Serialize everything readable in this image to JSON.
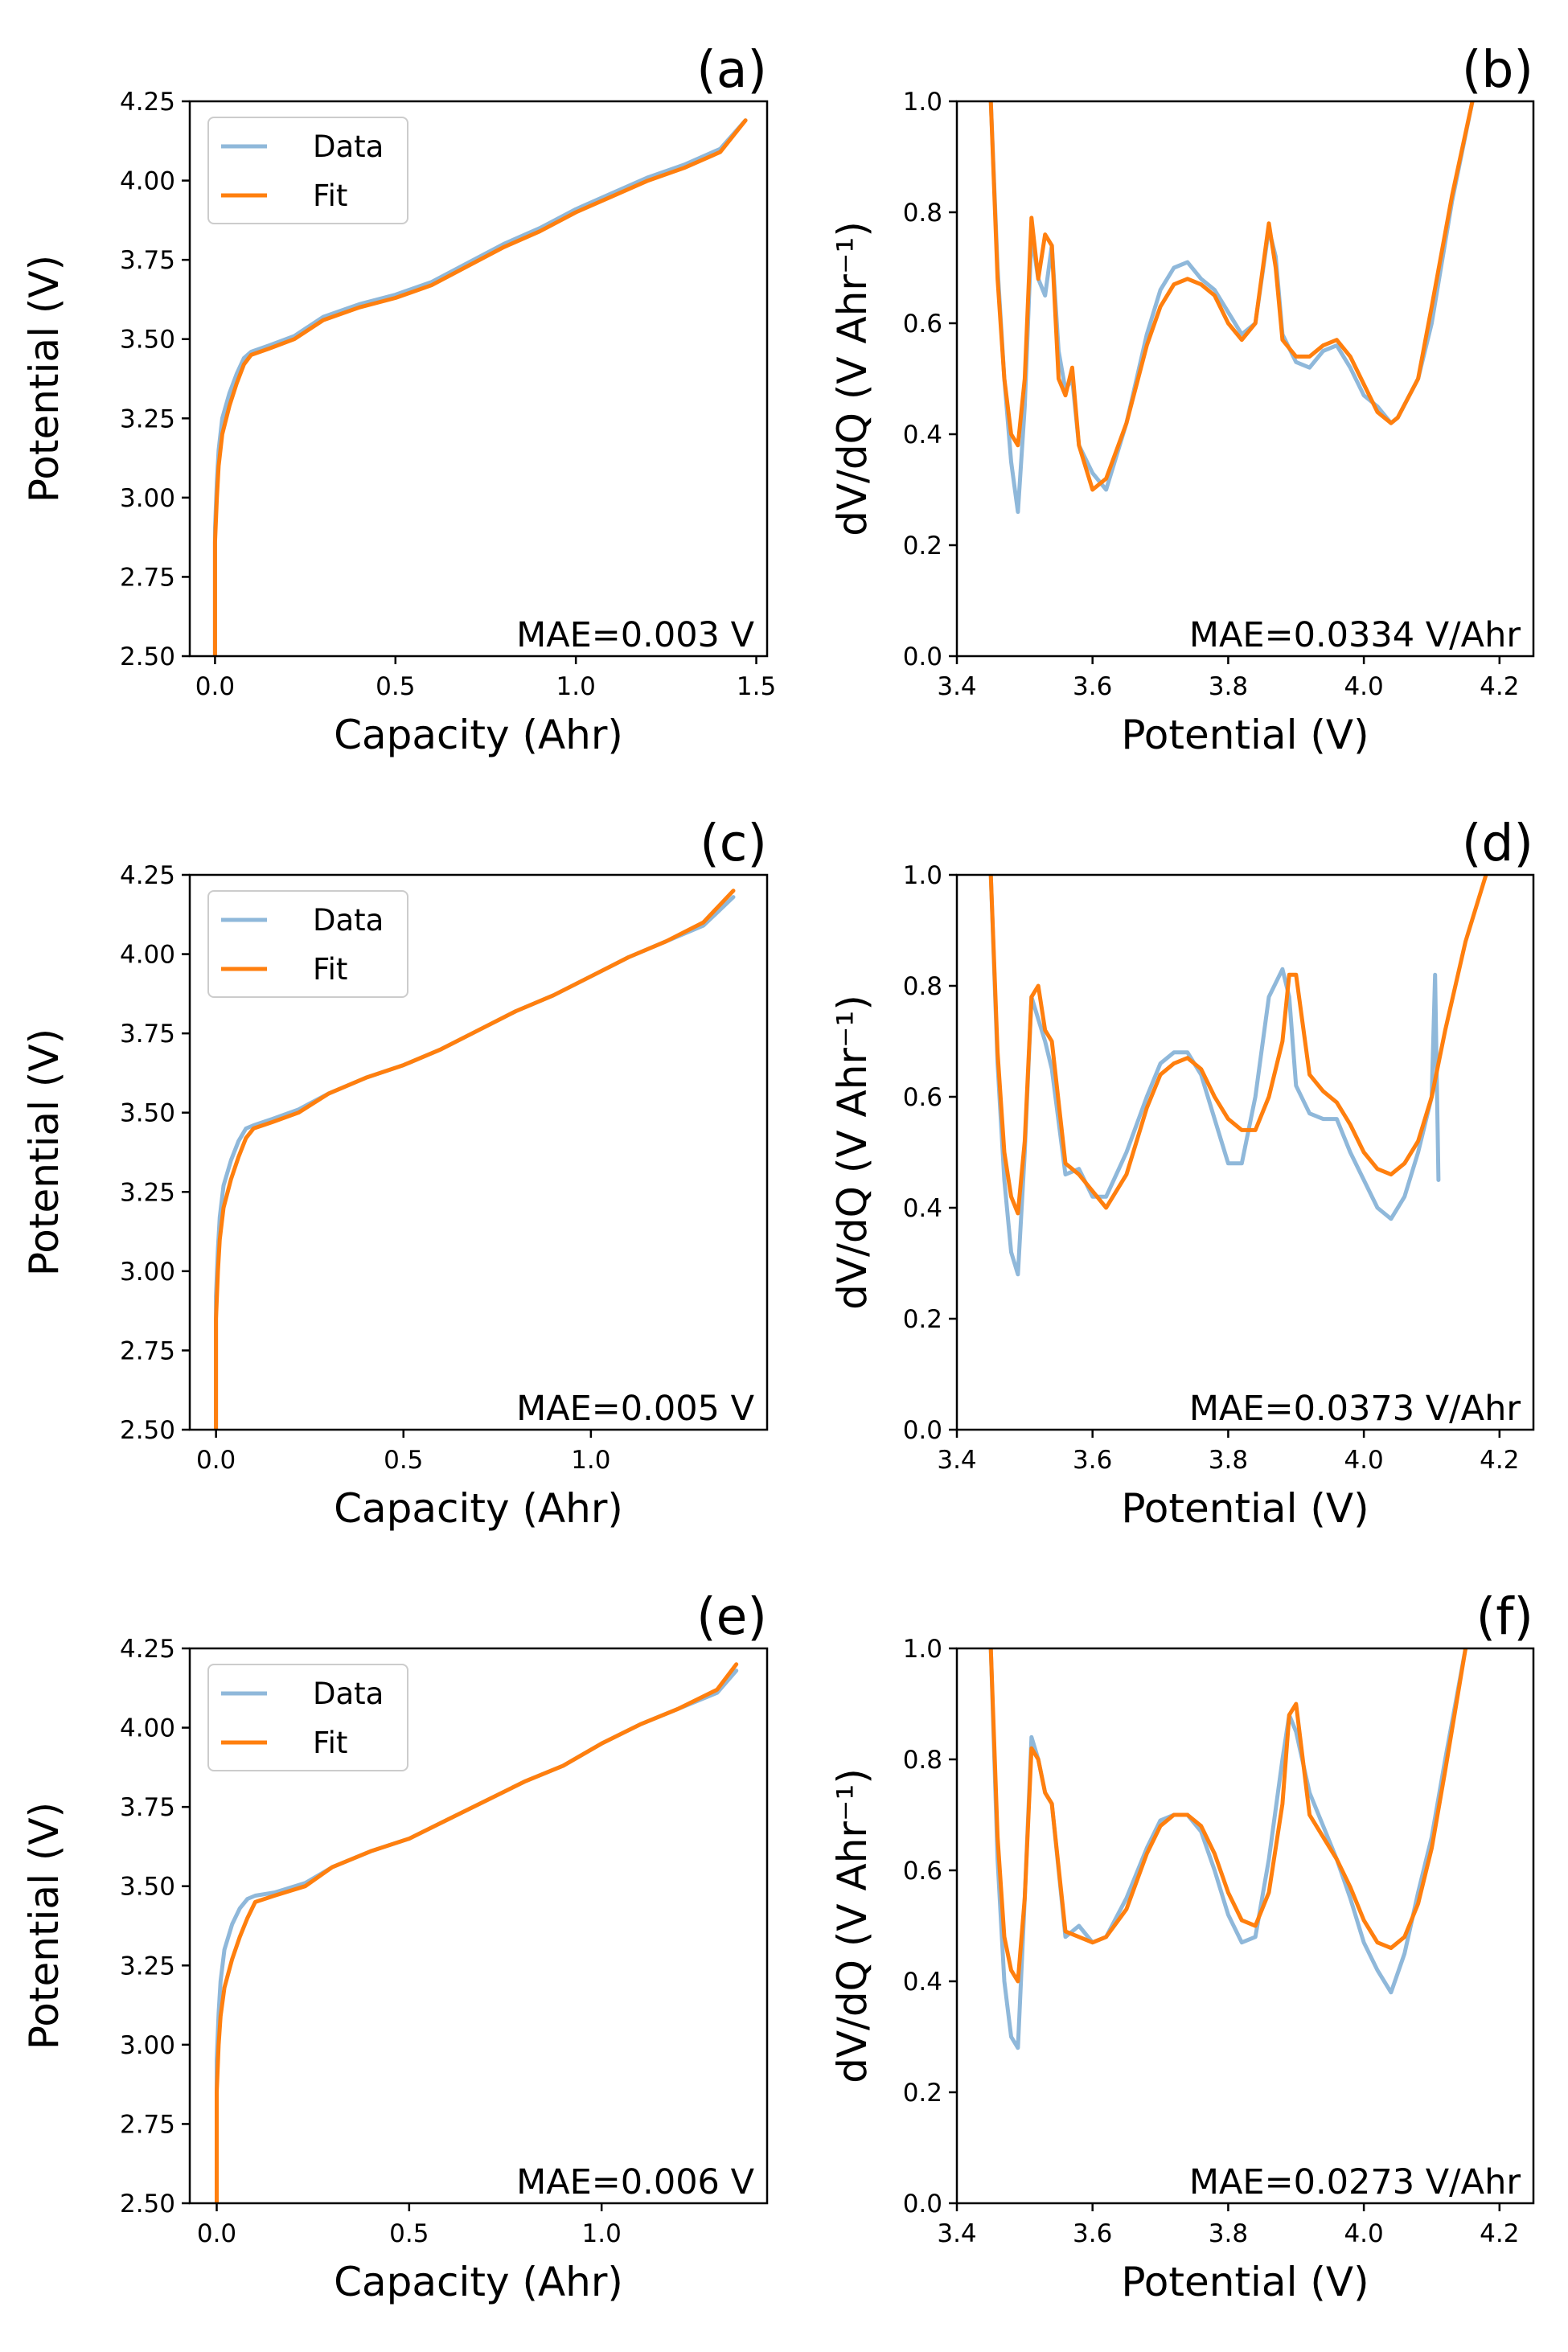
{
  "figure": {
    "colors": {
      "data": "#8fb8da",
      "fit": "#ff7f0e",
      "frame": "#000000",
      "legend_edge": "#cccccc"
    }
  },
  "chart_data": [
    {
      "id": "a",
      "type": "line",
      "panel_label": "(a)",
      "xlabel": "Capacity (Ahr)",
      "ylabel": "Potential (V)",
      "xlim": [
        -0.07,
        1.53
      ],
      "ylim": [
        2.5,
        4.25
      ],
      "xticks": [
        0.0,
        0.5,
        1.0,
        1.5
      ],
      "xtick_labels": [
        "0.0",
        "0.5",
        "1.0",
        "1.5"
      ],
      "yticks": [
        2.5,
        2.75,
        3.0,
        3.25,
        3.5,
        3.75,
        4.0,
        4.25
      ],
      "ytick_labels": [
        "2.50",
        "2.75",
        "3.00",
        "3.25",
        "3.50",
        "3.75",
        "4.00",
        "4.25"
      ],
      "legend": {
        "placement": "upper-left",
        "entries": [
          "Data",
          "Fit"
        ]
      },
      "annotation": "MAE=0.003 V",
      "series": [
        {
          "name": "Data",
          "x": [
            0.0,
            0.0,
            0.005,
            0.01,
            0.02,
            0.04,
            0.06,
            0.08,
            0.1,
            0.15,
            0.22,
            0.3,
            0.4,
            0.5,
            0.6,
            0.7,
            0.8,
            0.9,
            1.0,
            1.1,
            1.2,
            1.3,
            1.4,
            1.47
          ],
          "y": [
            2.5,
            2.9,
            3.05,
            3.15,
            3.25,
            3.33,
            3.39,
            3.44,
            3.46,
            3.48,
            3.51,
            3.57,
            3.61,
            3.64,
            3.68,
            3.74,
            3.8,
            3.85,
            3.91,
            3.96,
            4.01,
            4.05,
            4.1,
            4.19
          ]
        },
        {
          "name": "Fit",
          "x": [
            0.0,
            0.0,
            0.005,
            0.01,
            0.02,
            0.04,
            0.06,
            0.08,
            0.1,
            0.15,
            0.22,
            0.3,
            0.4,
            0.5,
            0.6,
            0.7,
            0.8,
            0.9,
            1.0,
            1.1,
            1.2,
            1.3,
            1.4,
            1.47
          ],
          "y": [
            2.5,
            2.86,
            3.0,
            3.1,
            3.2,
            3.29,
            3.36,
            3.42,
            3.45,
            3.47,
            3.5,
            3.56,
            3.6,
            3.63,
            3.67,
            3.73,
            3.79,
            3.84,
            3.9,
            3.95,
            4.0,
            4.04,
            4.09,
            4.19
          ]
        }
      ]
    },
    {
      "id": "b",
      "type": "line",
      "panel_label": "(b)",
      "xlabel": "Potential (V)",
      "ylabel": "dV/dQ (V Ahr⁻¹)",
      "xlim": [
        3.4,
        4.25
      ],
      "ylim": [
        0.0,
        1.0
      ],
      "xticks": [
        3.4,
        3.6,
        3.8,
        4.0,
        4.2
      ],
      "xtick_labels": [
        "3.4",
        "3.6",
        "3.8",
        "4.0",
        "4.2"
      ],
      "yticks": [
        0.0,
        0.2,
        0.4,
        0.6,
        0.8,
        1.0
      ],
      "ytick_labels": [
        "0.0",
        "0.2",
        "0.4",
        "0.6",
        "0.8",
        "1.0"
      ],
      "annotation": "MAE=0.0334 V/Ahr",
      "series": [
        {
          "name": "Data",
          "x": [
            3.45,
            3.46,
            3.47,
            3.48,
            3.49,
            3.5,
            3.51,
            3.52,
            3.53,
            3.54,
            3.55,
            3.56,
            3.57,
            3.58,
            3.6,
            3.62,
            3.65,
            3.68,
            3.7,
            3.72,
            3.74,
            3.76,
            3.78,
            3.8,
            3.82,
            3.84,
            3.86,
            3.87,
            3.88,
            3.9,
            3.92,
            3.94,
            3.96,
            3.98,
            4.0,
            4.02,
            4.04,
            4.05,
            4.08,
            4.1,
            4.13,
            4.16
          ],
          "y": [
            1.0,
            0.7,
            0.5,
            0.35,
            0.26,
            0.45,
            0.76,
            0.68,
            0.65,
            0.74,
            0.55,
            0.48,
            0.5,
            0.38,
            0.33,
            0.3,
            0.42,
            0.58,
            0.66,
            0.7,
            0.71,
            0.68,
            0.66,
            0.62,
            0.58,
            0.6,
            0.77,
            0.72,
            0.58,
            0.53,
            0.52,
            0.55,
            0.56,
            0.52,
            0.47,
            0.45,
            0.42,
            0.43,
            0.5,
            0.6,
            0.82,
            1.0
          ]
        },
        {
          "name": "Fit",
          "x": [
            3.45,
            3.46,
            3.47,
            3.48,
            3.49,
            3.5,
            3.51,
            3.52,
            3.53,
            3.54,
            3.55,
            3.56,
            3.57,
            3.58,
            3.6,
            3.62,
            3.65,
            3.68,
            3.7,
            3.72,
            3.74,
            3.76,
            3.78,
            3.8,
            3.82,
            3.84,
            3.86,
            3.87,
            3.88,
            3.9,
            3.92,
            3.94,
            3.96,
            3.98,
            4.0,
            4.02,
            4.04,
            4.05,
            4.08,
            4.1,
            4.13,
            4.16
          ],
          "y": [
            1.0,
            0.68,
            0.5,
            0.4,
            0.38,
            0.5,
            0.79,
            0.68,
            0.76,
            0.74,
            0.5,
            0.47,
            0.52,
            0.38,
            0.3,
            0.32,
            0.42,
            0.56,
            0.63,
            0.67,
            0.68,
            0.67,
            0.65,
            0.6,
            0.57,
            0.6,
            0.78,
            0.7,
            0.57,
            0.54,
            0.54,
            0.56,
            0.57,
            0.54,
            0.49,
            0.44,
            0.42,
            0.43,
            0.5,
            0.63,
            0.83,
            1.0
          ]
        }
      ]
    },
    {
      "id": "c",
      "type": "line",
      "panel_label": "(c)",
      "xlabel": "Capacity (Ahr)",
      "ylabel": "Potential (V)",
      "xlim": [
        -0.07,
        1.47
      ],
      "ylim": [
        2.5,
        4.25
      ],
      "xticks": [
        0.0,
        0.5,
        1.0
      ],
      "xtick_labels": [
        "0.0",
        "0.5",
        "1.0"
      ],
      "yticks": [
        2.5,
        2.75,
        3.0,
        3.25,
        3.5,
        3.75,
        4.0,
        4.25
      ],
      "ytick_labels": [
        "2.50",
        "2.75",
        "3.00",
        "3.25",
        "3.50",
        "3.75",
        "4.00",
        "4.25"
      ],
      "legend": {
        "placement": "upper-left",
        "entries": [
          "Data",
          "Fit"
        ]
      },
      "annotation": "MAE=0.005 V",
      "series": [
        {
          "name": "Data",
          "x": [
            0.0,
            0.0,
            0.005,
            0.01,
            0.02,
            0.04,
            0.06,
            0.08,
            0.1,
            0.15,
            0.22,
            0.3,
            0.4,
            0.5,
            0.6,
            0.7,
            0.8,
            0.9,
            1.0,
            1.1,
            1.2,
            1.3,
            1.38
          ],
          "y": [
            2.5,
            2.92,
            3.07,
            3.17,
            3.27,
            3.35,
            3.41,
            3.45,
            3.46,
            3.48,
            3.51,
            3.56,
            3.61,
            3.65,
            3.7,
            3.76,
            3.82,
            3.87,
            3.93,
            3.99,
            4.04,
            4.09,
            4.18
          ]
        },
        {
          "name": "Fit",
          "x": [
            0.0,
            0.0,
            0.005,
            0.01,
            0.02,
            0.04,
            0.06,
            0.08,
            0.1,
            0.15,
            0.22,
            0.3,
            0.4,
            0.5,
            0.6,
            0.7,
            0.8,
            0.9,
            1.0,
            1.1,
            1.2,
            1.3,
            1.38
          ],
          "y": [
            2.5,
            2.85,
            3.0,
            3.1,
            3.2,
            3.29,
            3.36,
            3.42,
            3.45,
            3.47,
            3.5,
            3.56,
            3.61,
            3.65,
            3.7,
            3.76,
            3.82,
            3.87,
            3.93,
            3.99,
            4.04,
            4.1,
            4.2
          ]
        }
      ]
    },
    {
      "id": "d",
      "type": "line",
      "panel_label": "(d)",
      "xlabel": "Potential (V)",
      "ylabel": "dV/dQ (V Ahr⁻¹)",
      "xlim": [
        3.4,
        4.25
      ],
      "ylim": [
        0.0,
        1.0
      ],
      "xticks": [
        3.4,
        3.6,
        3.8,
        4.0,
        4.2
      ],
      "xtick_labels": [
        "3.4",
        "3.6",
        "3.8",
        "4.0",
        "4.2"
      ],
      "yticks": [
        0.0,
        0.2,
        0.4,
        0.6,
        0.8,
        1.0
      ],
      "ytick_labels": [
        "0.0",
        "0.2",
        "0.4",
        "0.6",
        "0.8",
        "1.0"
      ],
      "annotation": "MAE=0.0373 V/Ahr",
      "series": [
        {
          "name": "Data",
          "x": [
            3.45,
            3.46,
            3.47,
            3.48,
            3.49,
            3.5,
            3.51,
            3.52,
            3.53,
            3.54,
            3.56,
            3.58,
            3.6,
            3.62,
            3.65,
            3.68,
            3.7,
            3.72,
            3.74,
            3.76,
            3.78,
            3.8,
            3.82,
            3.84,
            3.86,
            3.88,
            3.89,
            3.9,
            3.92,
            3.94,
            3.96,
            3.98,
            4.0,
            4.02,
            4.04,
            4.06,
            4.08,
            4.1,
            4.105,
            4.11
          ],
          "y": [
            1.0,
            0.66,
            0.45,
            0.32,
            0.28,
            0.5,
            0.78,
            0.74,
            0.7,
            0.65,
            0.46,
            0.47,
            0.42,
            0.42,
            0.5,
            0.6,
            0.66,
            0.68,
            0.68,
            0.64,
            0.56,
            0.48,
            0.48,
            0.6,
            0.78,
            0.83,
            0.78,
            0.62,
            0.57,
            0.56,
            0.56,
            0.5,
            0.45,
            0.4,
            0.38,
            0.42,
            0.5,
            0.6,
            0.82,
            0.45
          ]
        },
        {
          "name": "Fit",
          "x": [
            3.45,
            3.46,
            3.47,
            3.48,
            3.49,
            3.5,
            3.51,
            3.52,
            3.53,
            3.54,
            3.56,
            3.58,
            3.6,
            3.62,
            3.65,
            3.68,
            3.7,
            3.72,
            3.74,
            3.76,
            3.78,
            3.8,
            3.82,
            3.84,
            3.86,
            3.88,
            3.89,
            3.9,
            3.92,
            3.94,
            3.96,
            3.98,
            4.0,
            4.02,
            4.04,
            4.06,
            4.08,
            4.1,
            4.12,
            4.15,
            4.18
          ],
          "y": [
            1.0,
            0.68,
            0.5,
            0.42,
            0.39,
            0.52,
            0.78,
            0.8,
            0.72,
            0.7,
            0.48,
            0.46,
            0.43,
            0.4,
            0.46,
            0.58,
            0.64,
            0.66,
            0.67,
            0.65,
            0.6,
            0.56,
            0.54,
            0.54,
            0.6,
            0.7,
            0.82,
            0.82,
            0.64,
            0.61,
            0.59,
            0.55,
            0.5,
            0.47,
            0.46,
            0.48,
            0.52,
            0.6,
            0.72,
            0.88,
            1.0
          ]
        }
      ]
    },
    {
      "id": "e",
      "type": "line",
      "panel_label": "(e)",
      "xlabel": "Capacity (Ahr)",
      "ylabel": "Potential (V)",
      "xlim": [
        -0.07,
        1.43
      ],
      "ylim": [
        2.5,
        4.25
      ],
      "xticks": [
        0.0,
        0.5,
        1.0
      ],
      "xtick_labels": [
        "0.0",
        "0.5",
        "1.0"
      ],
      "yticks": [
        2.5,
        2.75,
        3.0,
        3.25,
        3.5,
        3.75,
        4.0,
        4.25
      ],
      "ytick_labels": [
        "2.50",
        "2.75",
        "3.00",
        "3.25",
        "3.50",
        "3.75",
        "4.00",
        "4.25"
      ],
      "legend": {
        "placement": "upper-left",
        "entries": [
          "Data",
          "Fit"
        ]
      },
      "annotation": "MAE=0.006 V",
      "series": [
        {
          "name": "Data",
          "x": [
            0.0,
            0.0,
            0.005,
            0.01,
            0.02,
            0.04,
            0.06,
            0.08,
            0.1,
            0.15,
            0.23,
            0.3,
            0.4,
            0.5,
            0.6,
            0.7,
            0.8,
            0.9,
            1.0,
            1.1,
            1.2,
            1.3,
            1.35
          ],
          "y": [
            2.5,
            2.95,
            3.1,
            3.2,
            3.3,
            3.38,
            3.43,
            3.46,
            3.47,
            3.48,
            3.51,
            3.56,
            3.61,
            3.65,
            3.71,
            3.77,
            3.83,
            3.88,
            3.95,
            4.01,
            4.06,
            4.11,
            4.18
          ]
        },
        {
          "name": "Fit",
          "x": [
            0.0,
            0.0,
            0.005,
            0.01,
            0.02,
            0.04,
            0.06,
            0.08,
            0.1,
            0.15,
            0.23,
            0.3,
            0.4,
            0.5,
            0.6,
            0.7,
            0.8,
            0.9,
            1.0,
            1.1,
            1.2,
            1.3,
            1.35
          ],
          "y": [
            2.5,
            2.85,
            3.0,
            3.09,
            3.18,
            3.27,
            3.34,
            3.4,
            3.45,
            3.47,
            3.5,
            3.56,
            3.61,
            3.65,
            3.71,
            3.77,
            3.83,
            3.88,
            3.95,
            4.01,
            4.06,
            4.12,
            4.2
          ]
        }
      ]
    },
    {
      "id": "f",
      "type": "line",
      "panel_label": "(f)",
      "xlabel": "Potential (V)",
      "ylabel": "dV/dQ (V Ahr⁻¹)",
      "xlim": [
        3.4,
        4.25
      ],
      "ylim": [
        0.0,
        1.0
      ],
      "xticks": [
        3.4,
        3.6,
        3.8,
        4.0,
        4.2
      ],
      "xtick_labels": [
        "3.4",
        "3.6",
        "3.8",
        "4.0",
        "4.2"
      ],
      "yticks": [
        0.0,
        0.2,
        0.4,
        0.6,
        0.8,
        1.0
      ],
      "ytick_labels": [
        "0.0",
        "0.2",
        "0.4",
        "0.6",
        "0.8",
        "1.0"
      ],
      "annotation": "MAE=0.0273 V/Ahr",
      "series": [
        {
          "name": "Data",
          "x": [
            3.45,
            3.46,
            3.47,
            3.48,
            3.49,
            3.5,
            3.51,
            3.52,
            3.53,
            3.54,
            3.56,
            3.58,
            3.6,
            3.62,
            3.65,
            3.68,
            3.7,
            3.72,
            3.74,
            3.76,
            3.78,
            3.8,
            3.82,
            3.84,
            3.86,
            3.88,
            3.89,
            3.9,
            3.92,
            3.94,
            3.96,
            3.98,
            4.0,
            4.02,
            4.04,
            4.06,
            4.08,
            4.1,
            4.12,
            4.15
          ],
          "y": [
            1.0,
            0.62,
            0.4,
            0.3,
            0.28,
            0.55,
            0.84,
            0.8,
            0.74,
            0.72,
            0.48,
            0.5,
            0.47,
            0.48,
            0.55,
            0.64,
            0.69,
            0.7,
            0.7,
            0.67,
            0.6,
            0.52,
            0.47,
            0.48,
            0.62,
            0.8,
            0.88,
            0.85,
            0.74,
            0.68,
            0.62,
            0.55,
            0.47,
            0.42,
            0.38,
            0.45,
            0.56,
            0.66,
            0.8,
            1.0
          ]
        },
        {
          "name": "Fit",
          "x": [
            3.45,
            3.46,
            3.47,
            3.48,
            3.49,
            3.5,
            3.51,
            3.52,
            3.53,
            3.54,
            3.56,
            3.58,
            3.6,
            3.62,
            3.65,
            3.68,
            3.7,
            3.72,
            3.74,
            3.76,
            3.78,
            3.8,
            3.82,
            3.84,
            3.86,
            3.88,
            3.89,
            3.9,
            3.92,
            3.94,
            3.96,
            3.98,
            4.0,
            4.02,
            4.04,
            4.06,
            4.08,
            4.1,
            4.12,
            4.15
          ],
          "y": [
            1.0,
            0.66,
            0.48,
            0.42,
            0.4,
            0.55,
            0.82,
            0.8,
            0.74,
            0.72,
            0.49,
            0.48,
            0.47,
            0.48,
            0.53,
            0.63,
            0.68,
            0.7,
            0.7,
            0.68,
            0.63,
            0.56,
            0.51,
            0.5,
            0.56,
            0.72,
            0.88,
            0.9,
            0.7,
            0.66,
            0.62,
            0.57,
            0.51,
            0.47,
            0.46,
            0.48,
            0.54,
            0.64,
            0.78,
            1.0
          ]
        }
      ]
    }
  ]
}
